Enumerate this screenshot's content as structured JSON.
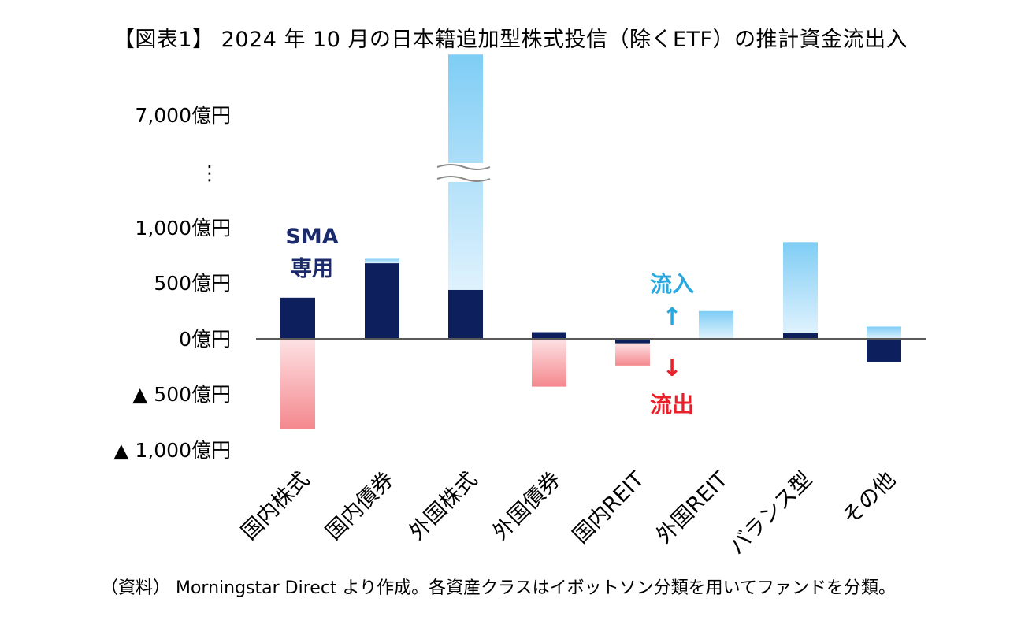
{
  "chart_data": {
    "type": "bar",
    "title": "【図表1】 2024 年 10 月の日本籍追加型株式投信（除くETF）の推計資金流出入",
    "categories": [
      "国内株式",
      "国内債券",
      "外国株式",
      "外国債券",
      "国内REIT",
      "外国REIT",
      "バランス型",
      "その他"
    ],
    "series": [
      {
        "name": "SMA専用",
        "color": "#0d1f5c",
        "values": [
          370,
          680,
          440,
          60,
          -40,
          0,
          50,
          -210
        ]
      },
      {
        "name": "流入",
        "color": "#8fd3f7",
        "values": [
          0,
          40,
          7500,
          0,
          0,
          250,
          820,
          110
        ]
      },
      {
        "name": "流出",
        "color": "#f58e94",
        "values": [
          -810,
          0,
          0,
          -430,
          -200,
          0,
          0,
          0
        ]
      }
    ],
    "y_tick_labels": [
      "7,000億円",
      "⋮",
      "1,000億円",
      "500億円",
      "0億円",
      "▲ 500億円",
      "▲ 1,000億円"
    ],
    "y_ticks": [
      7000,
      1000,
      500,
      0,
      -500,
      -1000
    ],
    "ylim": [
      -1000,
      7000
    ],
    "axis_break": true,
    "annotations": {
      "sma_line1": "SMA",
      "sma_line2": "専用",
      "inflow_label": "流入",
      "inflow_arrow": "↑",
      "outflow_arrow": "↓",
      "outflow_label": "流出"
    },
    "xlabel": "",
    "ylabel": ""
  },
  "source_note": "（資料） Morningstar Direct より作成。各資産クラスはイボットソン分類を用いてファンドを分類。",
  "colors": {
    "sma": "#0d1f5c",
    "inflow": "#8fd3f7",
    "outflow": "#f58e94",
    "inflow_text": "#29a8e0",
    "outflow_text": "#e8202a"
  }
}
